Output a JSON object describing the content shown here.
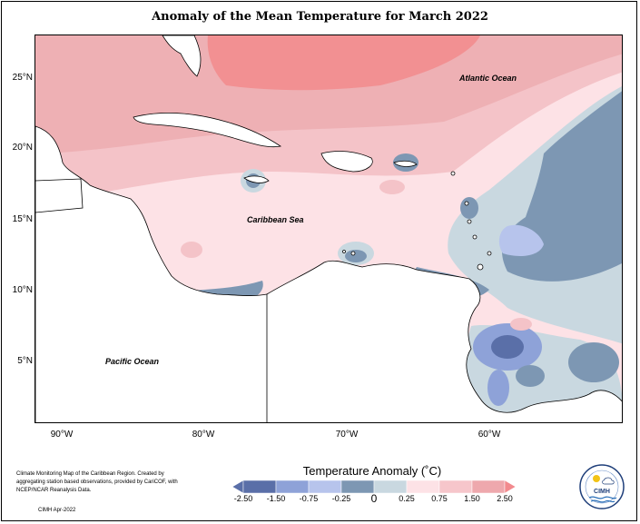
{
  "title": "Anomaly of the Mean Temperature for March 2022",
  "map": {
    "latitude_labels": [
      "25°N",
      "20°N",
      "15°N",
      "10°N",
      "5°N"
    ],
    "longitude_labels": [
      "90°W",
      "80°W",
      "70°W",
      "60°W"
    ],
    "ocean_labels": {
      "atlantic": "Atlantic Ocean",
      "caribbean": "Caribbean Sea",
      "pacific": "Pacific Ocean"
    }
  },
  "legend": {
    "title": "Temperature Anomaly (˚C)",
    "ticks": [
      "-2.50",
      "-1.50",
      "-0.75",
      "-0.25",
      "0",
      "0.25",
      "0.75",
      "1.50",
      "2.50"
    ],
    "colors": [
      "#5a6fa8",
      "#8ea2d8",
      "#b7c4ec",
      "#7d97b3",
      "#c9d8e0",
      "#fde2e6",
      "#f6c6cb",
      "#eea8ad",
      "#f28a8e"
    ]
  },
  "credit_text": "Climate Monitoring Map of the Caribbean Region. Created by aggregating station based observations, provided by CariCOF, with NCEP/NCAR Reanalysis Data.",
  "stamp": "CIMH Apr-2022",
  "logo_text": "CIMH"
}
